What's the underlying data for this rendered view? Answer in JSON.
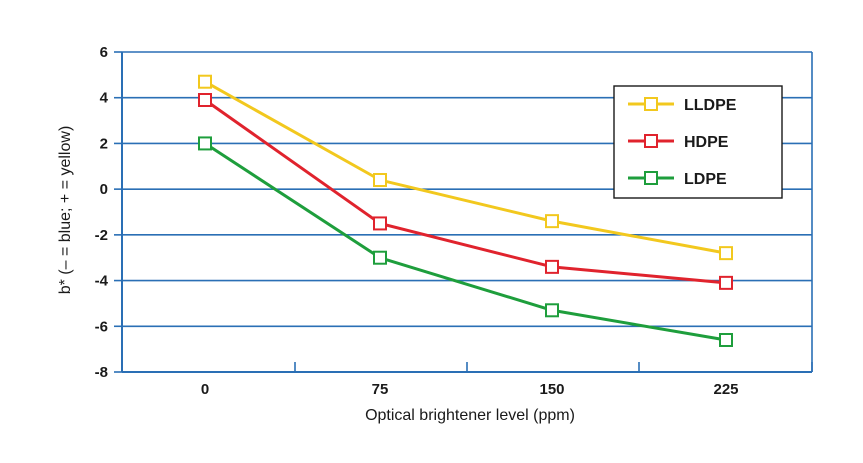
{
  "chart_data": {
    "type": "line",
    "categories": [
      "0",
      "75",
      "150",
      "225"
    ],
    "x": [
      0,
      75,
      150,
      225
    ],
    "xlabel": "Optical brightener level (ppm)",
    "ylabel": "b* (– = blue; + = yellow)",
    "ylim": [
      -8,
      6
    ],
    "yticks": [
      6,
      4,
      2,
      0,
      -2,
      -4,
      -6,
      -8
    ],
    "grid": "horizontal",
    "legend_position": "top-right",
    "series": [
      {
        "name": "LLDPE",
        "color": "#f2c81e",
        "values": [
          4.7,
          0.4,
          -1.4,
          -2.8
        ]
      },
      {
        "name": "HDPE",
        "color": "#e0232d",
        "values": [
          3.9,
          -1.5,
          -3.4,
          -4.1
        ]
      },
      {
        "name": "LDPE",
        "color": "#1e9e3c",
        "values": [
          2.0,
          -3.0,
          -5.3,
          -6.6
        ]
      }
    ]
  }
}
